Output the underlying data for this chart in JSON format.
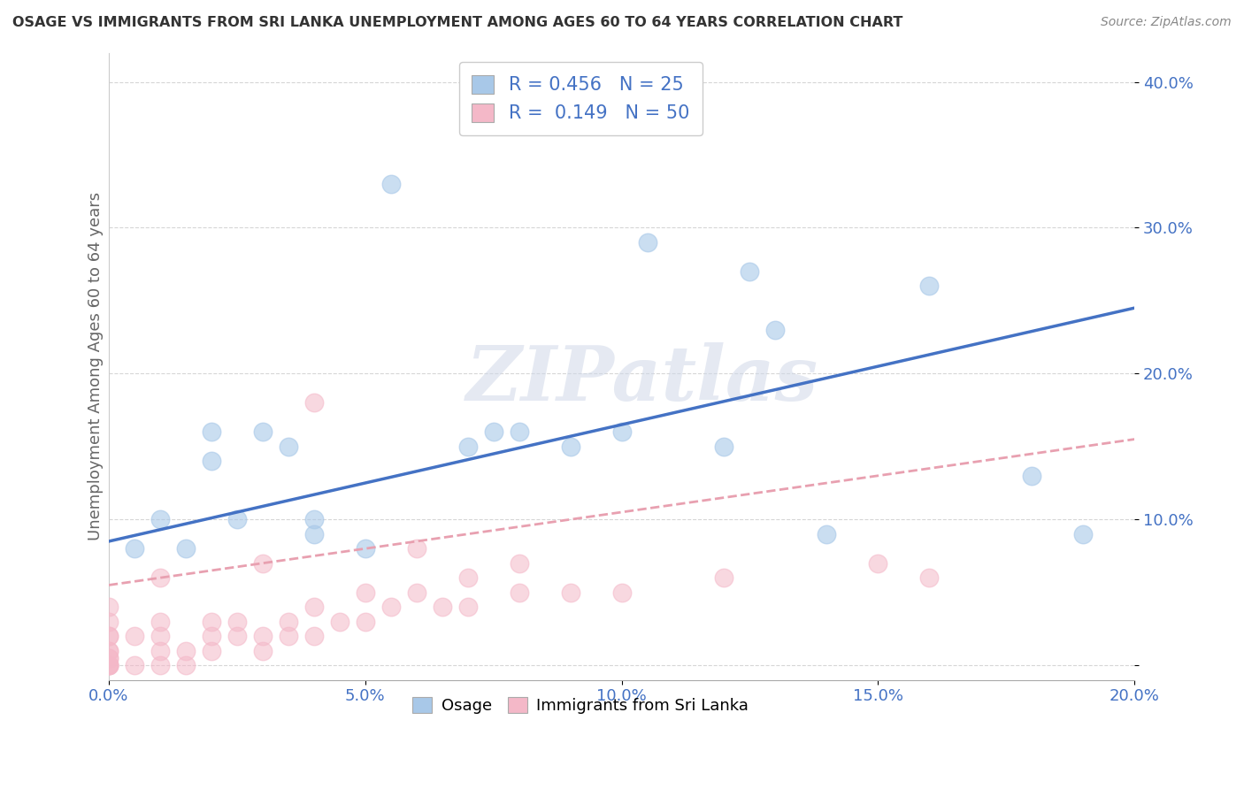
{
  "title": "OSAGE VS IMMIGRANTS FROM SRI LANKA UNEMPLOYMENT AMONG AGES 60 TO 64 YEARS CORRELATION CHART",
  "source": "Source: ZipAtlas.com",
  "ylabel": "Unemployment Among Ages 60 to 64 years",
  "xlim": [
    0.0,
    0.2
  ],
  "ylim": [
    -0.01,
    0.42
  ],
  "xticks": [
    0.0,
    0.05,
    0.1,
    0.15,
    0.2
  ],
  "yticks": [
    0.0,
    0.1,
    0.2,
    0.3,
    0.4
  ],
  "xtick_labels": [
    "0.0%",
    "5.0%",
    "10.0%",
    "15.0%",
    "20.0%"
  ],
  "ytick_labels": [
    "",
    "10.0%",
    "20.0%",
    "30.0%",
    "40.0%"
  ],
  "osage_R": 0.456,
  "osage_N": 25,
  "srilanka_R": 0.149,
  "srilanka_N": 50,
  "osage_color": "#a8c8e8",
  "srilanka_color": "#f4b8c8",
  "osage_line_color": "#4472c4",
  "srilanka_line_color": "#e8a0b0",
  "watermark": "ZIPatlas",
  "legend_label_osage": "Osage",
  "legend_label_srilanka": "Immigrants from Sri Lanka",
  "osage_x": [
    0.005,
    0.01,
    0.015,
    0.02,
    0.02,
    0.025,
    0.03,
    0.035,
    0.04,
    0.04,
    0.05,
    0.055,
    0.07,
    0.075,
    0.08,
    0.09,
    0.1,
    0.105,
    0.12,
    0.125,
    0.13,
    0.14,
    0.16,
    0.18,
    0.19
  ],
  "osage_y": [
    0.08,
    0.1,
    0.08,
    0.14,
    0.16,
    0.1,
    0.16,
    0.15,
    0.09,
    0.1,
    0.08,
    0.33,
    0.15,
    0.16,
    0.16,
    0.15,
    0.16,
    0.29,
    0.15,
    0.27,
    0.23,
    0.09,
    0.26,
    0.13,
    0.09
  ],
  "srilanka_x": [
    0.0,
    0.0,
    0.0,
    0.0,
    0.0,
    0.0,
    0.0,
    0.0,
    0.0,
    0.0,
    0.0,
    0.0,
    0.005,
    0.005,
    0.01,
    0.01,
    0.01,
    0.01,
    0.01,
    0.015,
    0.015,
    0.02,
    0.02,
    0.02,
    0.025,
    0.025,
    0.03,
    0.03,
    0.03,
    0.035,
    0.035,
    0.04,
    0.04,
    0.04,
    0.045,
    0.05,
    0.05,
    0.055,
    0.06,
    0.06,
    0.065,
    0.07,
    0.07,
    0.08,
    0.08,
    0.09,
    0.1,
    0.12,
    0.15,
    0.16
  ],
  "srilanka_y": [
    0.0,
    0.0,
    0.0,
    0.0,
    0.005,
    0.005,
    0.01,
    0.01,
    0.02,
    0.02,
    0.03,
    0.04,
    0.0,
    0.02,
    0.0,
    0.01,
    0.02,
    0.03,
    0.06,
    0.0,
    0.01,
    0.01,
    0.02,
    0.03,
    0.02,
    0.03,
    0.01,
    0.02,
    0.07,
    0.02,
    0.03,
    0.02,
    0.04,
    0.18,
    0.03,
    0.03,
    0.05,
    0.04,
    0.05,
    0.08,
    0.04,
    0.04,
    0.06,
    0.05,
    0.07,
    0.05,
    0.05,
    0.06,
    0.07,
    0.06
  ],
  "blue_line_x0": 0.0,
  "blue_line_y0": 0.085,
  "blue_line_x1": 0.2,
  "blue_line_y1": 0.245,
  "pink_line_x0": 0.0,
  "pink_line_y0": 0.055,
  "pink_line_x1": 0.2,
  "pink_line_y1": 0.155
}
